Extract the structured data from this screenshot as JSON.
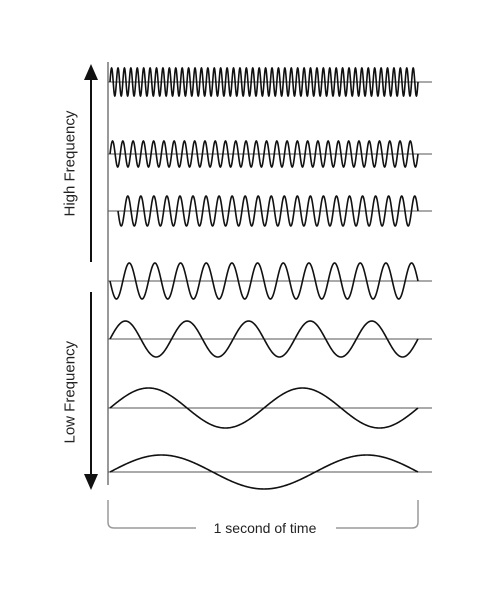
{
  "labels": {
    "high_frequency": "High Frequency",
    "low_frequency": "Low Frequency",
    "time_span": "1 second of time"
  },
  "waves": [
    {
      "cycles": 48
    },
    {
      "cycles": 30
    },
    {
      "cycles": 23
    },
    {
      "cycles": 12
    },
    {
      "cycles": 5
    },
    {
      "cycles": 2
    },
    {
      "cycles": 1.5
    }
  ],
  "colors": {
    "stroke": "#111111",
    "baseline": "#555555",
    "bracket": "#9a9a9a"
  }
}
